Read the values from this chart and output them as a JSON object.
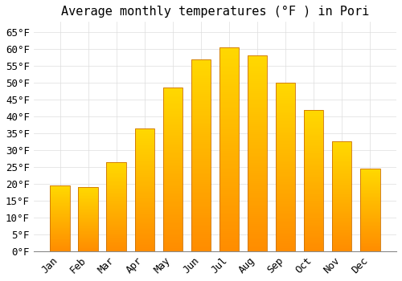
{
  "title": "Average monthly temperatures (°F ) in Pori",
  "months": [
    "Jan",
    "Feb",
    "Mar",
    "Apr",
    "May",
    "Jun",
    "Jul",
    "Aug",
    "Sep",
    "Oct",
    "Nov",
    "Dec"
  ],
  "values": [
    19.5,
    19.0,
    26.5,
    36.5,
    48.5,
    57.0,
    60.5,
    58.0,
    50.0,
    42.0,
    32.5,
    24.5
  ],
  "bar_color_top": "#FFB300",
  "bar_color_bottom": "#FF8C00",
  "bar_edge_color": "#CC7000",
  "background_color": "#FFFFFF",
  "grid_color": "#DDDDDD",
  "ylim": [
    0,
    68
  ],
  "yticks": [
    0,
    5,
    10,
    15,
    20,
    25,
    30,
    35,
    40,
    45,
    50,
    55,
    60,
    65
  ],
  "title_fontsize": 11,
  "tick_fontsize": 9,
  "tick_font_family": "monospace"
}
